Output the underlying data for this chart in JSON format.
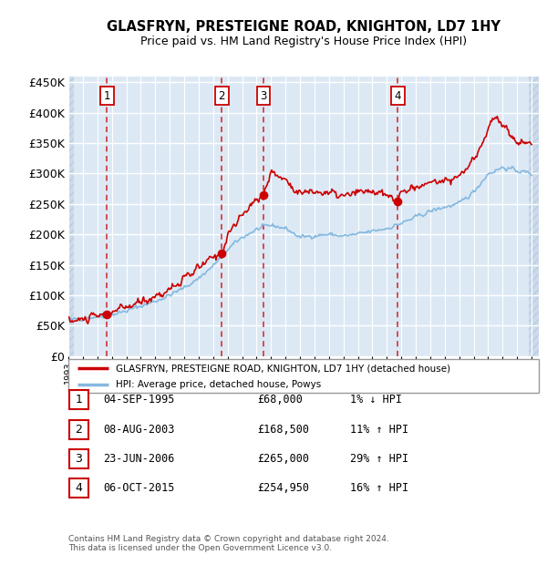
{
  "title": "GLASFRYN, PRESTEIGNE ROAD, KNIGHTON, LD7 1HY",
  "subtitle": "Price paid vs. HM Land Registry's House Price Index (HPI)",
  "ylabel_ticks": [
    "£0",
    "£50K",
    "£100K",
    "£150K",
    "£200K",
    "£250K",
    "£300K",
    "£350K",
    "£400K",
    "£450K"
  ],
  "ytick_values": [
    0,
    50000,
    100000,
    150000,
    200000,
    250000,
    300000,
    350000,
    400000,
    450000
  ],
  "ylim": [
    0,
    460000
  ],
  "xlim_start": 1993.0,
  "xlim_end": 2025.5,
  "background_color": "#dce9f5",
  "grid_color": "#ffffff",
  "sale_dates": [
    1995.67,
    2003.6,
    2006.47,
    2015.76
  ],
  "sale_prices": [
    68000,
    168500,
    265000,
    254950
  ],
  "sale_labels": [
    "1",
    "2",
    "3",
    "4"
  ],
  "hpi_line_color": "#85b9e0",
  "price_line_color": "#cc0000",
  "vline_color": "#cc0000",
  "legend_house_label": "GLASFRYN, PRESTEIGNE ROAD, KNIGHTON, LD7 1HY (detached house)",
  "legend_hpi_label": "HPI: Average price, detached house, Powys",
  "table_rows": [
    {
      "num": "1",
      "date": "04-SEP-1995",
      "price": "£68,000",
      "hpi": "1% ↓ HPI"
    },
    {
      "num": "2",
      "date": "08-AUG-2003",
      "price": "£168,500",
      "hpi": "11% ↑ HPI"
    },
    {
      "num": "3",
      "date": "23-JUN-2006",
      "price": "£265,000",
      "hpi": "29% ↑ HPI"
    },
    {
      "num": "4",
      "date": "06-OCT-2015",
      "price": "£254,950",
      "hpi": "16% ↑ HPI"
    }
  ],
  "footer": "Contains HM Land Registry data © Crown copyright and database right 2024.\nThis data is licensed under the Open Government Licence v3.0."
}
